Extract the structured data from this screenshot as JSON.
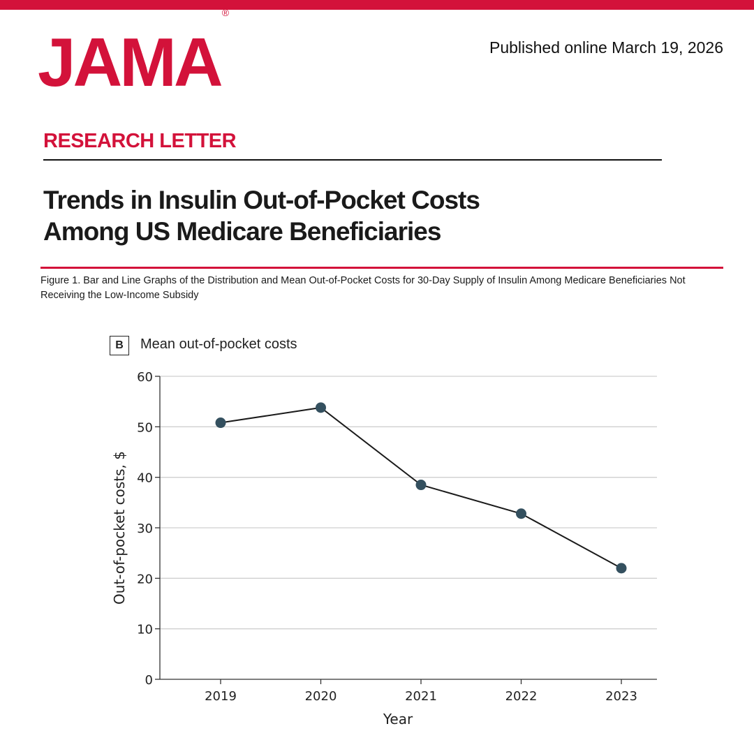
{
  "header": {
    "logo_text": "JAMA",
    "registered_mark": "®",
    "published": "Published online March 19, 2026",
    "brand_color": "#d3123a"
  },
  "article": {
    "section": "RESEARCH LETTER",
    "title_line1": "Trends in Insulin Out-of-Pocket Costs",
    "title_line2": "Among US Medicare Beneficiaries"
  },
  "figure": {
    "caption": "Figure 1. Bar and Line Graphs of the Distribution and Mean Out-of-Pocket Costs for 30-Day Supply of Insulin Among Medicare Beneficiaries Not Receiving the Low-Income Subsidy",
    "panel_letter": "B",
    "panel_title": "Mean out-of-pocket costs"
  },
  "chart_data": {
    "type": "line",
    "x": [
      "2019",
      "2020",
      "2021",
      "2022",
      "2023"
    ],
    "series": [
      {
        "values": [
          50.8,
          53.8,
          38.5,
          32.8,
          22.0
        ],
        "color": "#34505f"
      }
    ],
    "xlabel": "Year",
    "ylabel": "Out-of-pocket costs, $",
    "ylim": [
      0,
      60
    ],
    "yticks": [
      0,
      10,
      20,
      30,
      40,
      50,
      60
    ],
    "grid": true,
    "line_color": "#1a1a1a",
    "marker_color": "#34505f"
  }
}
